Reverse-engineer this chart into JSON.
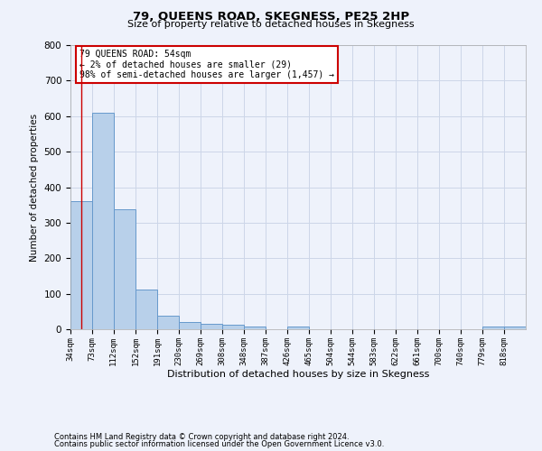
{
  "title": "79, QUEENS ROAD, SKEGNESS, PE25 2HP",
  "subtitle": "Size of property relative to detached houses in Skegness",
  "xlabel": "Distribution of detached houses by size in Skegness",
  "ylabel": "Number of detached properties",
  "footer_line1": "Contains HM Land Registry data © Crown copyright and database right 2024.",
  "footer_line2": "Contains public sector information licensed under the Open Government Licence v3.0.",
  "bins": [
    34,
    73,
    112,
    152,
    191,
    230,
    269,
    308,
    348,
    387,
    426,
    465,
    504,
    544,
    583,
    622,
    661,
    700,
    740,
    779,
    818
  ],
  "counts": [
    360,
    610,
    338,
    113,
    37,
    20,
    15,
    12,
    8,
    0,
    8,
    0,
    0,
    0,
    0,
    0,
    0,
    0,
    0,
    8,
    8
  ],
  "property_size": 54,
  "annotation_title": "79 QUEENS ROAD: 54sqm",
  "annotation_line1": "← 2% of detached houses are smaller (29)",
  "annotation_line2": "98% of semi-detached houses are larger (1,457) →",
  "bar_color": "#b8d0ea",
  "bar_edge_color": "#6699cc",
  "red_line_color": "#cc0000",
  "annotation_box_color": "#ffffff",
  "annotation_box_edge": "#cc0000",
  "grid_color": "#ccd6e8",
  "background_color": "#eef2fb",
  "ylim": [
    0,
    800
  ],
  "yticks": [
    0,
    100,
    200,
    300,
    400,
    500,
    600,
    700,
    800
  ]
}
